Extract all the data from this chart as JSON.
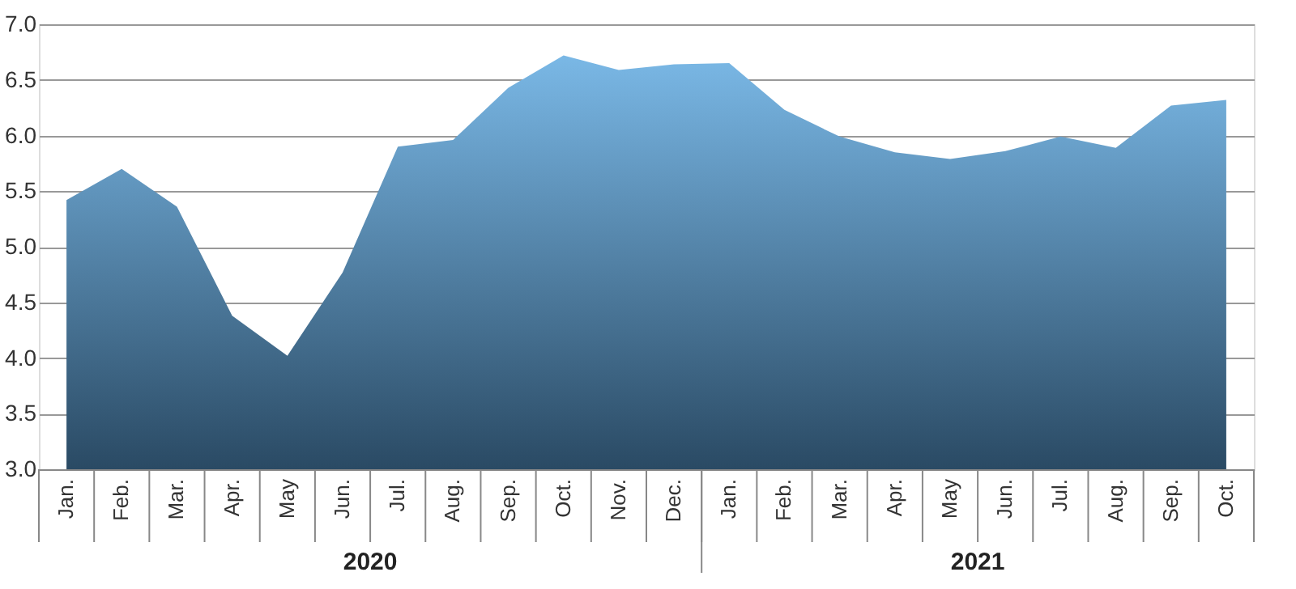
{
  "chart_data": {
    "type": "area",
    "categories": [
      "Jan.",
      "Feb.",
      "Mar.",
      "Apr.",
      "May",
      "Jun.",
      "Jul.",
      "Aug.",
      "Sep.",
      "Oct.",
      "Nov.",
      "Dec.",
      "Jan.",
      "Feb.",
      "Mar.",
      "Apr.",
      "May",
      "Jun.",
      "Jul.",
      "Aug.",
      "Sep.",
      "Oct."
    ],
    "series": [
      {
        "color": "#7ab8e6",
        "values": [
          5.42,
          5.7,
          5.36,
          4.38,
          4.02,
          4.77,
          5.9,
          5.96,
          6.43,
          6.72,
          6.59,
          6.64,
          6.65,
          6.23,
          5.99,
          5.85,
          5.79,
          5.86,
          5.99,
          5.89,
          6.27,
          6.32
        ]
      }
    ],
    "annotations": [
      "2020",
      "2021"
    ],
    "ylim": [
      3.0,
      7.0
    ],
    "yticks": [
      {
        "value": 3,
        "label": "3.0"
      },
      {
        "value": 3.5,
        "label": "3.5"
      },
      {
        "value": 4,
        "label": "4.0"
      },
      {
        "value": 4.5,
        "label": "4.5"
      },
      {
        "value": 5,
        "label": "5.0"
      },
      {
        "value": 5.5,
        "label": "5.5"
      },
      {
        "value": 6,
        "label": "6.0"
      },
      {
        "value": 6.5,
        "label": "6.5"
      },
      {
        "value": 7,
        "label": "7.0"
      }
    ],
    "grid": "y"
  }
}
